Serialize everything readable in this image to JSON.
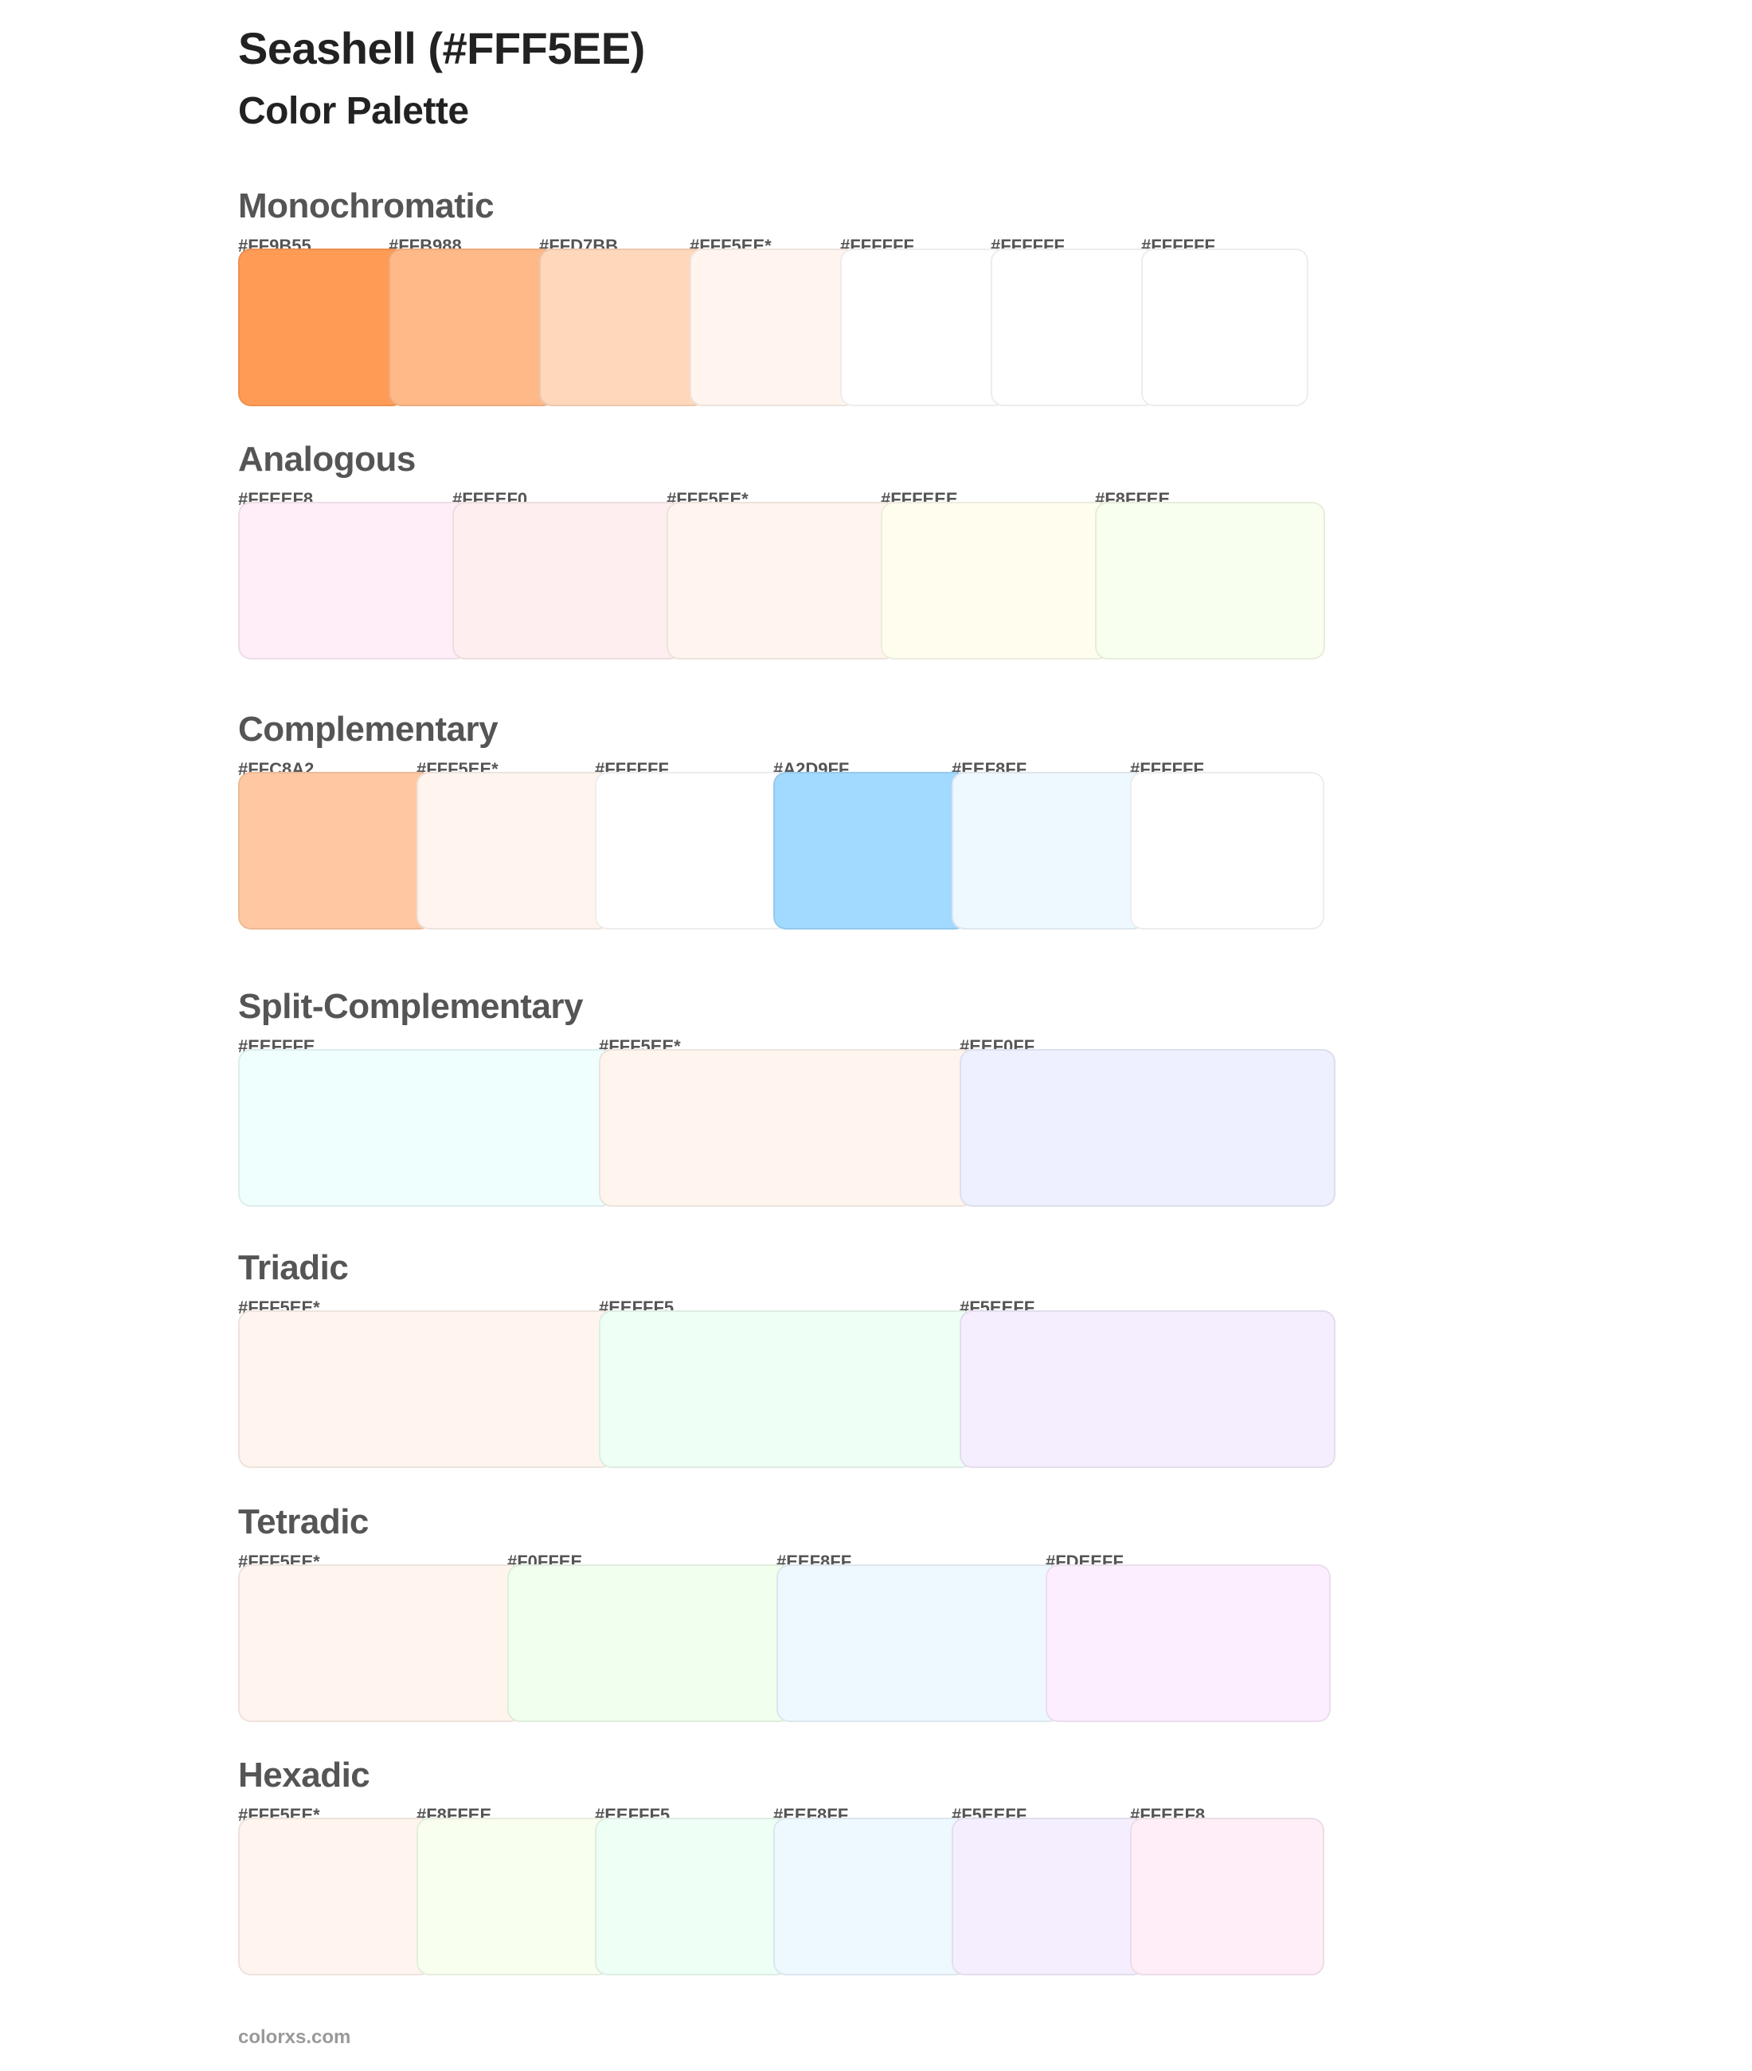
{
  "header": {
    "title": "Seashell (#FFF5EE)",
    "subtitle": "Color Palette"
  },
  "sections": [
    {
      "name": "Monochromatic",
      "swatches": [
        {
          "label": "#FF9B55",
          "color": "#FF9B55"
        },
        {
          "label": "#FFB988",
          "color": "#FFB988"
        },
        {
          "label": "#FFD7BB",
          "color": "#FFD7BB"
        },
        {
          "label": "#FFF5EE*",
          "color": "#FFF5EE"
        },
        {
          "label": "#FFFFFF",
          "color": "#FFFFFF"
        },
        {
          "label": "#FFFFFF",
          "color": "#FFFFFF"
        },
        {
          "label": "#FFFFFF",
          "color": "#FFFFFF"
        }
      ]
    },
    {
      "name": "Analogous",
      "swatches": [
        {
          "label": "#FFEEF8",
          "color": "#FFEEF8"
        },
        {
          "label": "#FFEEF0",
          "color": "#FFEEF0"
        },
        {
          "label": "#FFF5EE*",
          "color": "#FFF5EE"
        },
        {
          "label": "#FFFEEE",
          "color": "#FFFEEE"
        },
        {
          "label": "#F8FFEE",
          "color": "#F8FFEE"
        }
      ]
    },
    {
      "name": "Complementary",
      "swatches": [
        {
          "label": "#FFC8A2",
          "color": "#FFC8A2"
        },
        {
          "label": "#FFF5EE*",
          "color": "#FFF5EE"
        },
        {
          "label": "#FFFFFF",
          "color": "#FFFFFF"
        },
        {
          "label": "#A2D9FF",
          "color": "#A2D9FF"
        },
        {
          "label": "#EEF8FF",
          "color": "#EEF8FF"
        },
        {
          "label": "#FFFFFF",
          "color": "#FFFFFF"
        }
      ]
    },
    {
      "name": "Split-Complementary",
      "swatches": [
        {
          "label": "#EEFFFE",
          "color": "#EEFFFE"
        },
        {
          "label": "#FFF5EE*",
          "color": "#FFF5EE"
        },
        {
          "label": "#EEF0FF",
          "color": "#EEF0FF"
        }
      ]
    },
    {
      "name": "Triadic",
      "swatches": [
        {
          "label": "#FFF5EE*",
          "color": "#FFF5EE"
        },
        {
          "label": "#EEFFF5",
          "color": "#EEFFF5"
        },
        {
          "label": "#F5EEFF",
          "color": "#F5EEFF"
        }
      ]
    },
    {
      "name": "Tetradic",
      "swatches": [
        {
          "label": "#FFF5EE*",
          "color": "#FFF5EE"
        },
        {
          "label": "#F0FFEE",
          "color": "#F0FFEE"
        },
        {
          "label": "#EEF8FF",
          "color": "#EEF8FF"
        },
        {
          "label": "#FDEEFF",
          "color": "#FDEEFF"
        }
      ]
    },
    {
      "name": "Hexadic",
      "swatches": [
        {
          "label": "#FFF5EE*",
          "color": "#FFF5EE"
        },
        {
          "label": "#F8FFEE",
          "color": "#F8FFEE"
        },
        {
          "label": "#EEFFF5",
          "color": "#EEFFF5"
        },
        {
          "label": "#EEF8FF",
          "color": "#EEF8FF"
        },
        {
          "label": "#F5EEFF",
          "color": "#F5EEFF"
        },
        {
          "label": "#FFEEF8",
          "color": "#FFEEF8"
        }
      ]
    }
  ],
  "footer": {
    "text": "colorxs.com"
  }
}
